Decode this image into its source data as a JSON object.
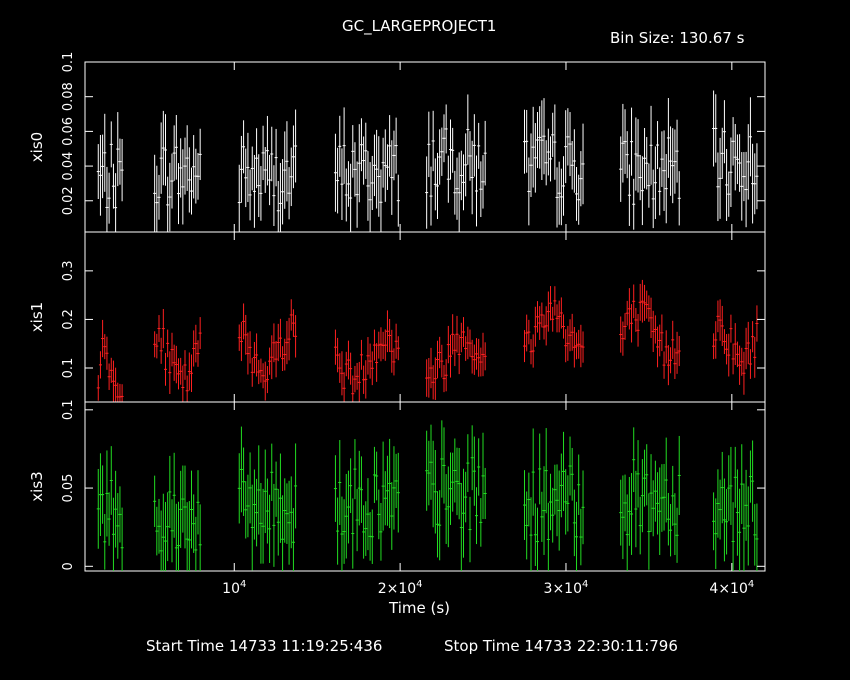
{
  "title": "GC_LARGEPROJECT1",
  "bin_size_label": "Bin Size: 130.67 s",
  "xlabel": "Time (s)",
  "start_time_label": "Start Time 14733 11:19:25:436",
  "stop_time_label": "Stop Time 14733 22:30:11:796",
  "colors": {
    "background": "#000000",
    "axes": "#ffffff",
    "xis0": "#ffffff",
    "xis1": "#ff2020",
    "xis3": "#22dd22"
  },
  "chart_data": [
    {
      "type": "scatter",
      "ylabel": "xis0",
      "series": [
        {
          "name": "xis0"
        }
      ],
      "xlim": [
        1000,
        42000
      ],
      "ylim": [
        0.002,
        0.1
      ],
      "x_ticks": [
        {
          "value": 10000,
          "label": "10^4"
        },
        {
          "value": 20000,
          "label": "2×10^4"
        },
        {
          "value": 30000,
          "label": "3×10^4"
        },
        {
          "value": 40000,
          "label": "4×10^4"
        }
      ],
      "y_ticks": [
        {
          "value": 0.02,
          "label": "0.02"
        },
        {
          "value": 0.04,
          "label": "0.04"
        },
        {
          "value": 0.06,
          "label": "0.06"
        },
        {
          "value": 0.08,
          "label": "0.08"
        },
        {
          "value": 0.1,
          "label": "0.1"
        }
      ],
      "segments": [
        [
          1800,
          3300
        ],
        [
          5200,
          8000
        ],
        [
          10300,
          13800
        ],
        [
          16100,
          19900
        ],
        [
          21600,
          25200
        ],
        [
          27500,
          31100
        ],
        [
          33300,
          36900
        ],
        [
          38900,
          41600
        ]
      ],
      "means": [
        0.033,
        0.036,
        0.034,
        0.036,
        0.042,
        0.04,
        0.037,
        0.042
      ],
      "error_half": 0.018
    },
    {
      "type": "scatter",
      "ylabel": "xis1",
      "series": [
        {
          "name": "xis1"
        }
      ],
      "xlim": [
        1000,
        42000
      ],
      "ylim": [
        0.03,
        0.38
      ],
      "x_ticks": [
        {
          "value": 10000,
          "label": "10^4"
        },
        {
          "value": 20000,
          "label": "2×10^4"
        },
        {
          "value": 30000,
          "label": "3×10^4"
        },
        {
          "value": 40000,
          "label": "4×10^4"
        }
      ],
      "y_ticks": [
        {
          "value": 0.1,
          "label": "0.1"
        },
        {
          "value": 0.2,
          "label": "0.2"
        },
        {
          "value": 0.3,
          "label": "0.3"
        }
      ],
      "segments": [
        [
          1800,
          3300
        ],
        [
          5200,
          8000
        ],
        [
          10300,
          13800
        ],
        [
          16100,
          19900
        ],
        [
          21600,
          25200
        ],
        [
          27500,
          31100
        ],
        [
          33300,
          36900
        ],
        [
          38900,
          41600
        ]
      ],
      "means": [
        0.09,
        0.11,
        0.14,
        0.12,
        0.13,
        0.18,
        0.17,
        0.15
      ],
      "error_half": 0.035
    },
    {
      "type": "scatter",
      "ylabel": "xis3",
      "series": [
        {
          "name": "xis3"
        }
      ],
      "xlim": [
        1000,
        42000
      ],
      "ylim": [
        -0.003,
        0.105
      ],
      "x_ticks": [
        {
          "value": 10000,
          "label": "10^4"
        },
        {
          "value": 20000,
          "label": "2×10^4"
        },
        {
          "value": 30000,
          "label": "3×10^4"
        },
        {
          "value": 40000,
          "label": "4×10^4"
        }
      ],
      "y_ticks": [
        {
          "value": 0,
          "label": "0"
        },
        {
          "value": 0.05,
          "label": "0.05"
        },
        {
          "value": 0.1,
          "label": "0.1"
        }
      ],
      "segments": [
        [
          1800,
          3300
        ],
        [
          5200,
          8000
        ],
        [
          10300,
          13800
        ],
        [
          16100,
          19900
        ],
        [
          21600,
          25200
        ],
        [
          27500,
          31100
        ],
        [
          33300,
          36900
        ],
        [
          38900,
          41600
        ]
      ],
      "means": [
        0.036,
        0.032,
        0.038,
        0.04,
        0.046,
        0.04,
        0.044,
        0.04
      ],
      "error_half": 0.022
    }
  ]
}
